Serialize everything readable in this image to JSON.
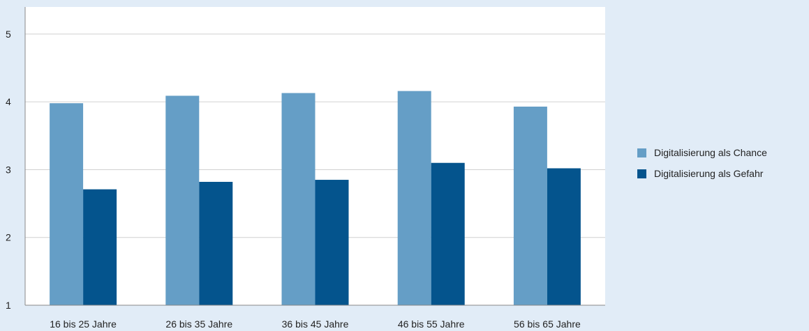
{
  "chart_data": {
    "type": "bar",
    "title": "",
    "xlabel": "",
    "ylabel": "",
    "ylim": [
      1,
      5.4
    ],
    "yticks": [
      1,
      2,
      3,
      4,
      5
    ],
    "grid": true,
    "legend_position": "right",
    "categories": [
      "16 bis 25 Jahre",
      "26 bis 35 Jahre",
      "36 bis 45 Jahre",
      "46 bis 55 Jahre",
      "56 bis 65 Jahre"
    ],
    "series": [
      {
        "name": "Digitalisierung als Chance",
        "color": "#659ec6",
        "values": [
          3.98,
          4.09,
          4.13,
          4.16,
          3.93
        ]
      },
      {
        "name": "Digitalisierung als Gefahr",
        "color": "#04548d",
        "values": [
          2.71,
          2.82,
          2.85,
          3.1,
          3.02
        ]
      }
    ]
  }
}
